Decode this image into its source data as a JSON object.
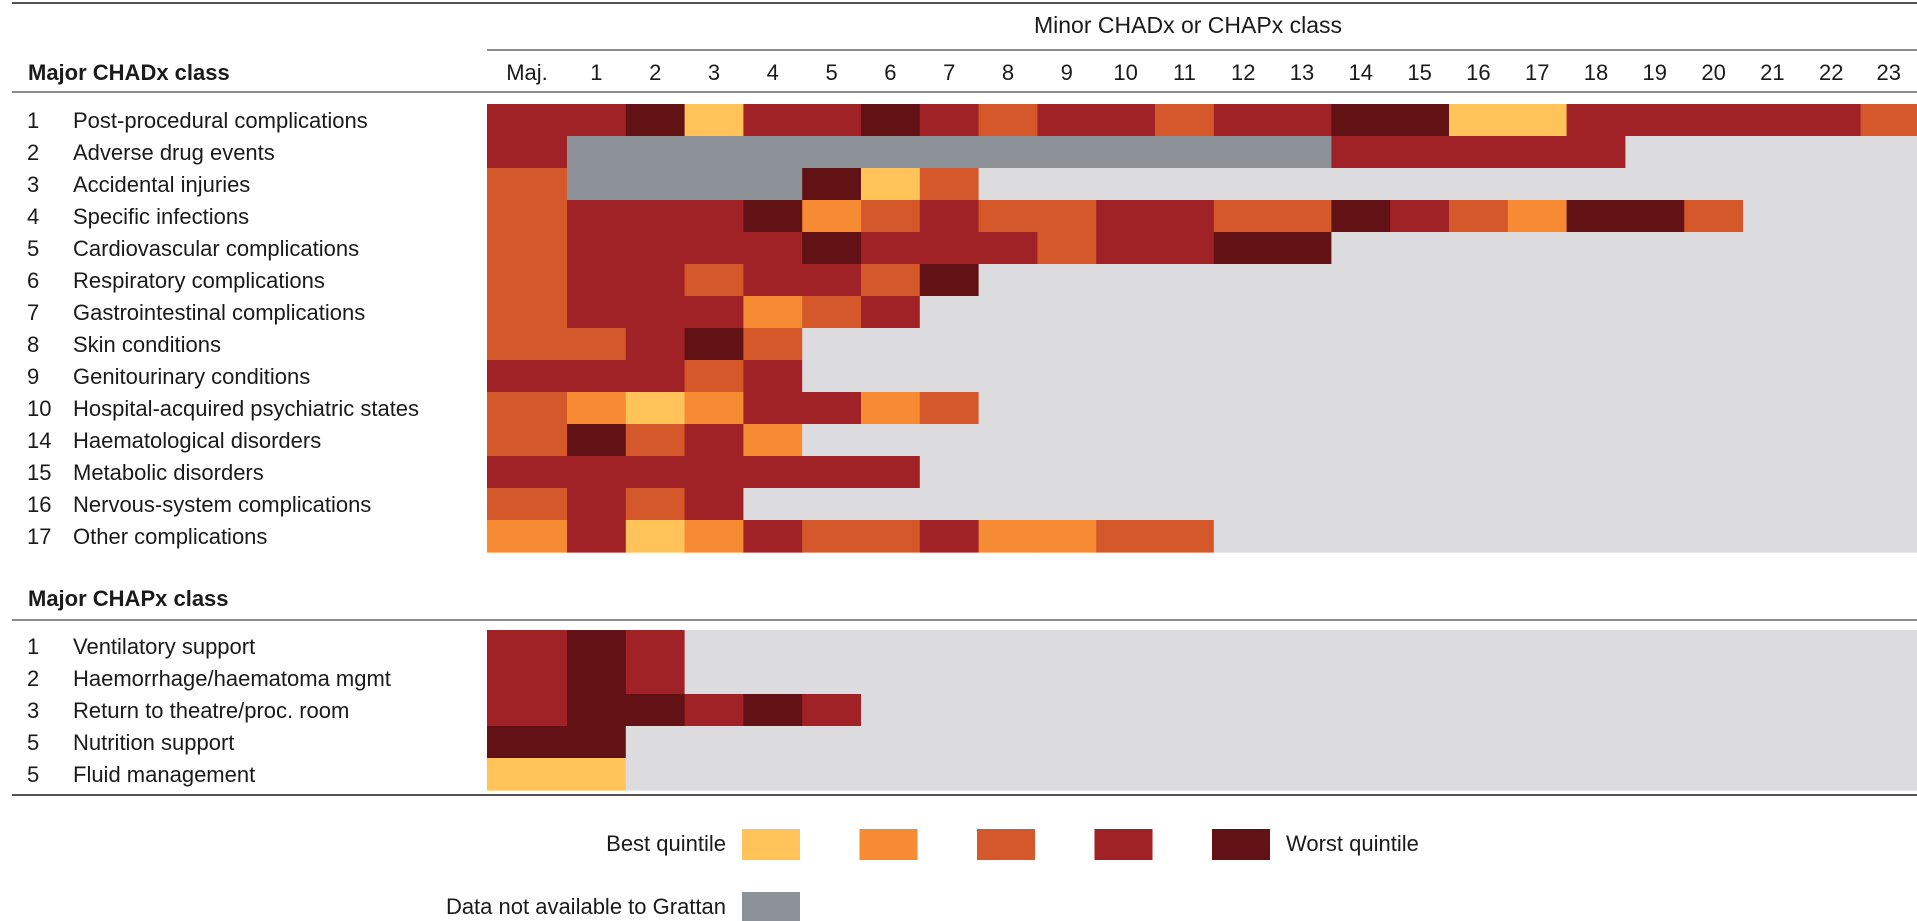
{
  "colors": {
    "q1": "#ffc35a",
    "q2": "#f68b33",
    "q3": "#d4582a",
    "q4": "#a02226",
    "q5": "#621214",
    "na": "#8c9297",
    "empty": "#dcdcde"
  },
  "chart_data": {
    "type": "heatmap",
    "top_header": "Minor CHADx or CHAPx class",
    "columns": [
      "Maj.",
      "1",
      "2",
      "3",
      "4",
      "5",
      "6",
      "7",
      "8",
      "9",
      "10",
      "11",
      "12",
      "13",
      "14",
      "15",
      "16",
      "17",
      "18",
      "19",
      "20",
      "21",
      "22",
      "23"
    ],
    "sections": [
      {
        "title": "Major CHADx class",
        "rows": [
          {
            "num": "1",
            "label": "Post-procedural complications",
            "cells": [
              4,
              4,
              5,
              1,
              4,
              4,
              5,
              4,
              3,
              4,
              4,
              3,
              4,
              4,
              5,
              5,
              1,
              1,
              4,
              4,
              4,
              4,
              4,
              3
            ]
          },
          {
            "num": "2",
            "label": "Adverse drug events",
            "cells": [
              4,
              "na",
              "na",
              "na",
              "na",
              "na",
              "na",
              "na",
              "na",
              "na",
              "na",
              "na",
              "na",
              "na",
              4,
              4,
              4,
              4,
              4,
              0,
              0,
              0,
              0,
              0
            ]
          },
          {
            "num": "3",
            "label": "Accidental injuries",
            "cells": [
              3,
              "na",
              "na",
              "na",
              "na",
              5,
              1,
              3,
              0,
              0,
              0,
              0,
              0,
              0,
              0,
              0,
              0,
              0,
              0,
              0,
              0,
              0,
              0,
              0
            ]
          },
          {
            "num": "4",
            "label": "Specific infections",
            "cells": [
              3,
              4,
              4,
              4,
              5,
              2,
              3,
              4,
              3,
              3,
              4,
              4,
              3,
              3,
              5,
              4,
              3,
              2,
              5,
              5,
              3,
              0,
              0,
              0
            ]
          },
          {
            "num": "5",
            "label": "Cardiovascular complications",
            "cells": [
              3,
              4,
              4,
              4,
              4,
              5,
              4,
              4,
              4,
              3,
              4,
              4,
              5,
              5,
              0,
              0,
              0,
              0,
              0,
              0,
              0,
              0,
              0,
              0
            ]
          },
          {
            "num": "6",
            "label": "Respiratory complications",
            "cells": [
              3,
              4,
              4,
              3,
              4,
              4,
              3,
              5,
              0,
              0,
              0,
              0,
              0,
              0,
              0,
              0,
              0,
              0,
              0,
              0,
              0,
              0,
              0,
              0
            ]
          },
          {
            "num": "7",
            "label": "Gastrointestinal complications",
            "cells": [
              3,
              4,
              4,
              4,
              2,
              3,
              4,
              0,
              0,
              0,
              0,
              0,
              0,
              0,
              0,
              0,
              0,
              0,
              0,
              0,
              0,
              0,
              0,
              0
            ]
          },
          {
            "num": "8",
            "label": "Skin conditions",
            "cells": [
              3,
              3,
              4,
              5,
              3,
              0,
              0,
              0,
              0,
              0,
              0,
              0,
              0,
              0,
              0,
              0,
              0,
              0,
              0,
              0,
              0,
              0,
              0,
              0
            ]
          },
          {
            "num": "9",
            "label": "Genitourinary conditions",
            "cells": [
              4,
              4,
              4,
              3,
              4,
              0,
              0,
              0,
              0,
              0,
              0,
              0,
              0,
              0,
              0,
              0,
              0,
              0,
              0,
              0,
              0,
              0,
              0,
              0
            ]
          },
          {
            "num": "10",
            "label": "Hospital-acquired psychiatric states",
            "cells": [
              3,
              2,
              1,
              2,
              4,
              4,
              2,
              3,
              0,
              0,
              0,
              0,
              0,
              0,
              0,
              0,
              0,
              0,
              0,
              0,
              0,
              0,
              0,
              0
            ]
          },
          {
            "num": "14",
            "label": "Haematological disorders",
            "cells": [
              3,
              5,
              3,
              4,
              2,
              0,
              0,
              0,
              0,
              0,
              0,
              0,
              0,
              0,
              0,
              0,
              0,
              0,
              0,
              0,
              0,
              0,
              0,
              0
            ]
          },
          {
            "num": "15",
            "label": "Metabolic disorders",
            "cells": [
              4,
              4,
              4,
              4,
              4,
              4,
              4,
              0,
              0,
              0,
              0,
              0,
              0,
              0,
              0,
              0,
              0,
              0,
              0,
              0,
              0,
              0,
              0,
              0
            ]
          },
          {
            "num": "16",
            "label": "Nervous-system complications",
            "cells": [
              3,
              4,
              3,
              4,
              0,
              0,
              0,
              0,
              0,
              0,
              0,
              0,
              0,
              0,
              0,
              0,
              0,
              0,
              0,
              0,
              0,
              0,
              0,
              0
            ]
          },
          {
            "num": "17",
            "label": "Other complications",
            "cells": [
              2,
              4,
              1,
              2,
              4,
              3,
              3,
              4,
              2,
              2,
              3,
              3,
              0,
              0,
              0,
              0,
              0,
              0,
              0,
              0,
              0,
              0,
              0,
              0
            ]
          }
        ]
      },
      {
        "title": "Major CHAPx class",
        "rows": [
          {
            "num": "1",
            "label": "Ventilatory support",
            "cells": [
              4,
              5,
              4,
              0,
              0,
              0,
              0,
              0,
              0,
              0,
              0,
              0,
              0,
              0,
              0,
              0,
              0,
              0,
              0,
              0,
              0,
              0,
              0,
              0
            ]
          },
          {
            "num": "2",
            "label": "Haemorrhage/haematoma mgmt",
            "cells": [
              4,
              5,
              4,
              0,
              0,
              0,
              0,
              0,
              0,
              0,
              0,
              0,
              0,
              0,
              0,
              0,
              0,
              0,
              0,
              0,
              0,
              0,
              0,
              0
            ]
          },
          {
            "num": "3",
            "label": "Return to theatre/proc. room",
            "cells": [
              4,
              5,
              5,
              4,
              5,
              4,
              0,
              0,
              0,
              0,
              0,
              0,
              0,
              0,
              0,
              0,
              0,
              0,
              0,
              0,
              0,
              0,
              0,
              0
            ]
          },
          {
            "num": "5",
            "label": "Nutrition support",
            "cells": [
              5,
              5,
              0,
              0,
              0,
              0,
              0,
              0,
              0,
              0,
              0,
              0,
              0,
              0,
              0,
              0,
              0,
              0,
              0,
              0,
              0,
              0,
              0,
              0
            ]
          },
          {
            "num": "5",
            "label": "Fluid management",
            "cells": [
              1,
              1,
              0,
              0,
              0,
              0,
              0,
              0,
              0,
              0,
              0,
              0,
              0,
              0,
              0,
              0,
              0,
              0,
              0,
              0,
              0,
              0,
              0,
              0
            ]
          }
        ]
      }
    ],
    "legend": {
      "best_label": "Best quintile",
      "worst_label": "Worst quintile",
      "scale": [
        1,
        2,
        3,
        4,
        5
      ],
      "na_label": "Data not available to Grattan"
    }
  }
}
